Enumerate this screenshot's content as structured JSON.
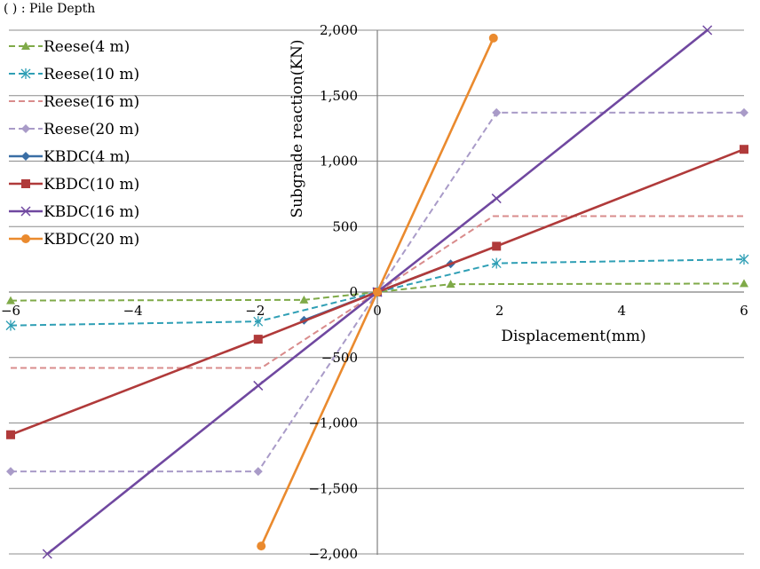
{
  "chart_data": {
    "type": "line",
    "note": "( ) : Pile Depth",
    "xlabel": "Displacement(mm)",
    "ylabel": "Subgrade reaction(KN)",
    "xlim": [
      -6,
      6
    ],
    "ylim": [
      -2000,
      2000
    ],
    "x_ticks": [
      -6,
      -4,
      -2,
      0,
      2,
      4,
      6
    ],
    "x_tick_labels": [
      "−6",
      "−4",
      "−2",
      "0",
      "2",
      "4",
      "6"
    ],
    "y_ticks": [
      2000,
      1500,
      1000,
      500,
      0,
      -500,
      -1000,
      -1500,
      -2000
    ],
    "y_tick_labels": [
      "2,000",
      "1,500",
      "1,000",
      "500",
      "0",
      "−500",
      "−1,000",
      "−1,500",
      "−2,000"
    ],
    "grid": "horizontal",
    "legend_position": "top-left",
    "series": [
      {
        "name": "Reese(4 m)",
        "color": "#7faa48",
        "dash": true,
        "marker": "triangle",
        "x": [
          -6,
          -1.2,
          0,
          1.2,
          6
        ],
        "y": [
          -65,
          -60,
          0,
          60,
          65
        ]
      },
      {
        "name": "Reese(10 m)",
        "color": "#2f9fb5",
        "dash": true,
        "marker": "asterisk",
        "x": [
          -6,
          -1.95,
          0,
          1.95,
          6
        ],
        "y": [
          -255,
          -225,
          0,
          220,
          250
        ]
      },
      {
        "name": "Reese(16 m)",
        "color": "#d98c8c",
        "dash": true,
        "marker": "none",
        "x": [
          -6,
          -1.9,
          0,
          1.9,
          6
        ],
        "y": [
          -580,
          -580,
          0,
          580,
          580
        ]
      },
      {
        "name": "Reese(20 m)",
        "color": "#a99bc8",
        "dash": true,
        "marker": "diamond",
        "x": [
          -6,
          -1.95,
          0,
          1.95,
          6
        ],
        "y": [
          -1370,
          -1370,
          0,
          1370,
          1370
        ]
      },
      {
        "name": "KBDC(4 m)",
        "color": "#3a6ea5",
        "dash": false,
        "marker": "diamond",
        "x": [
          -1.2,
          0,
          1.2
        ],
        "y": [
          -215,
          0,
          215
        ]
      },
      {
        "name": "KBDC(10 m)",
        "color": "#b03a3a",
        "dash": false,
        "marker": "square",
        "x": [
          -6,
          -1.95,
          0,
          1.95,
          6
        ],
        "y": [
          -1090,
          -360,
          0,
          350,
          1090
        ]
      },
      {
        "name": "KBDC(16 m)",
        "color": "#7048a0",
        "dash": false,
        "marker": "x",
        "x": [
          -5.4,
          -1.95,
          0,
          1.95,
          5.4
        ],
        "y": [
          -2000,
          -715,
          0,
          715,
          2000
        ]
      },
      {
        "name": "KBDC(20 m)",
        "color": "#ea8a2e",
        "dash": false,
        "marker": "circle",
        "x": [
          -1.9,
          0,
          1.9
        ],
        "y": [
          -1940,
          0,
          1940
        ]
      }
    ]
  }
}
